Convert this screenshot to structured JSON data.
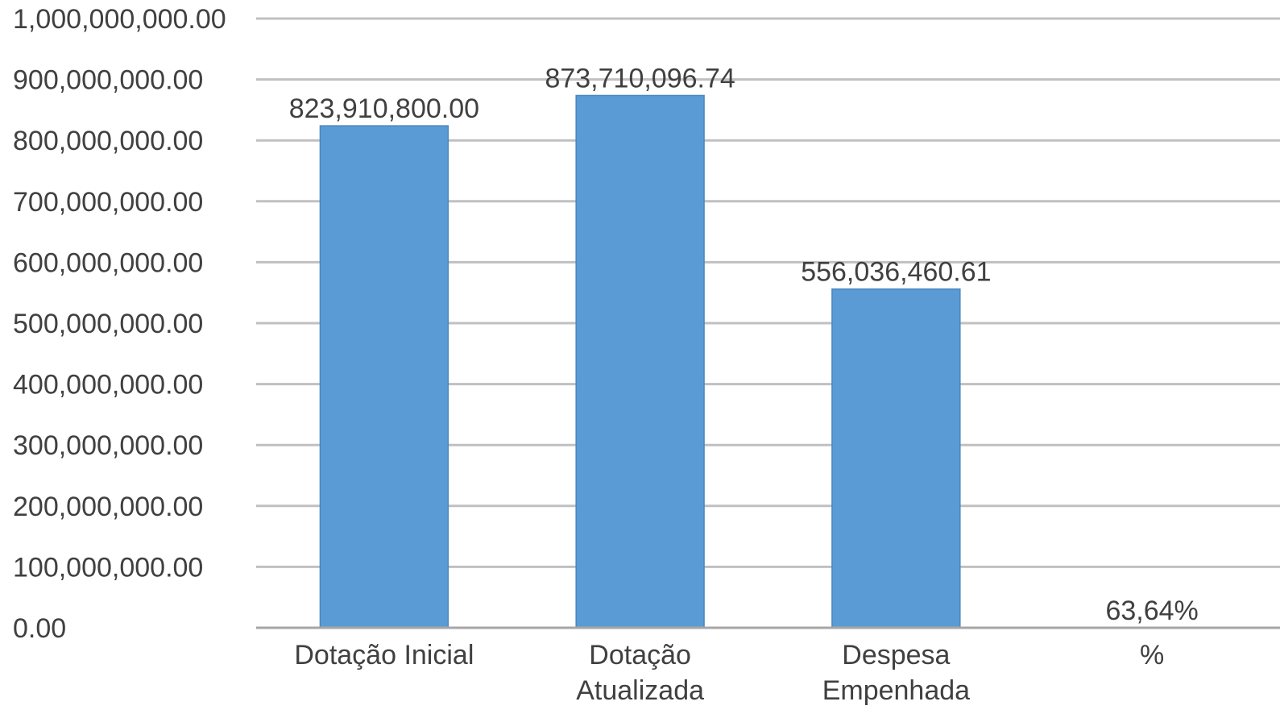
{
  "chart_data": {
    "type": "bar",
    "title": "",
    "xlabel": "",
    "ylabel": "",
    "categories": [
      [
        "Dotação Inicial"
      ],
      [
        "Dotação",
        "Atualizada"
      ],
      [
        "Despesa",
        "Empenhada"
      ],
      [
        "%"
      ]
    ],
    "values": [
      823910800.0,
      873710096.74,
      556036460.61,
      0.6364
    ],
    "data_labels": [
      "823,910,800.00",
      "873,710,096.74",
      "556,036,460.61",
      "63,64%"
    ],
    "ylim": [
      0,
      1000000000
    ],
    "yticks": [
      0,
      100000000,
      200000000,
      300000000,
      400000000,
      500000000,
      600000000,
      700000000,
      800000000,
      900000000,
      1000000000
    ],
    "ytick_labels": [
      "0.00",
      "100,000,000.00",
      "200,000,000.00",
      "300,000,000.00",
      "400,000,000.00",
      "500,000,000.00",
      "600,000,000.00",
      "700,000,000.00",
      "800,000,000.00",
      "900,000,000.00",
      "1,000,000,000.00"
    ],
    "grid": true,
    "legend": "none",
    "bar_color": "#5b9bd5"
  }
}
